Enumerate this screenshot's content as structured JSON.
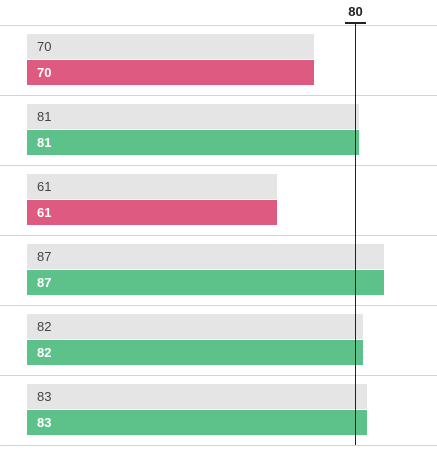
{
  "chart_data": {
    "type": "bar",
    "orientation": "horizontal",
    "reference_value": 80,
    "reference_label": "80",
    "xlim": [
      0,
      100
    ],
    "grid": false,
    "series": [
      {
        "values": [
          70,
          81,
          61,
          87,
          82,
          83
        ],
        "labels": [
          "70",
          "81",
          "61",
          "87",
          "82",
          "83"
        ]
      },
      {
        "values": [
          70,
          81,
          61,
          87,
          82,
          83
        ],
        "labels": [
          "70",
          "81",
          "61",
          "87",
          "82",
          "83"
        ]
      }
    ],
    "colors": {
      "above_reference": "#5dc28a",
      "below_reference": "#df5a80",
      "background_bar": "#e5e5e5"
    }
  }
}
